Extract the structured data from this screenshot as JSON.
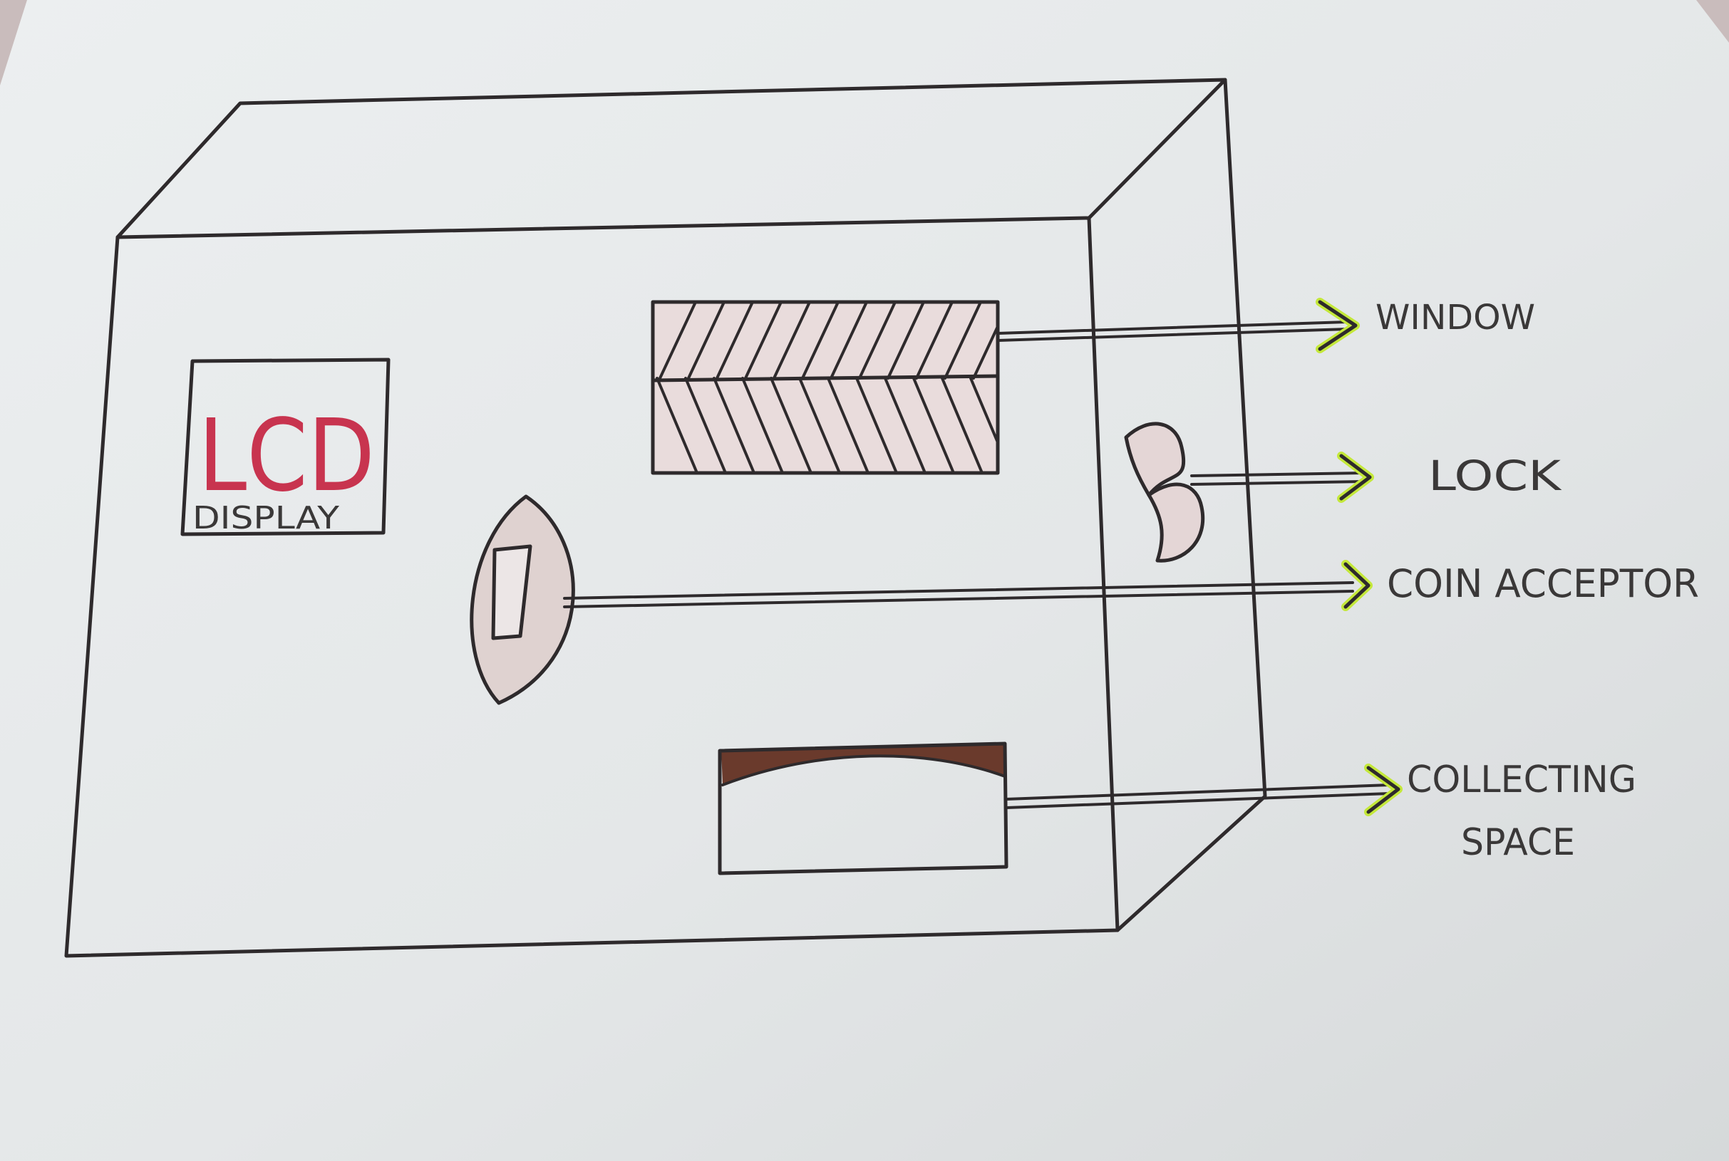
{
  "diagram": {
    "lcd": {
      "title": "LCD",
      "subtitle": "DISPLAY"
    },
    "labels": {
      "window": "WINDOW",
      "lock": "LOCK",
      "coin_acceptor": "COIN ACCEPTOR",
      "collecting_line1": "COLLECTING",
      "collecting_line2": "SPACE"
    }
  },
  "colors": {
    "paper": "#e6e9ea",
    "ink": "#2e2a2c",
    "lcd_text": "#c8344f",
    "arrow_highlight": "#c4e83a",
    "window_fill": "#e9dcdc",
    "slot_dark": "#6a3a2c"
  }
}
